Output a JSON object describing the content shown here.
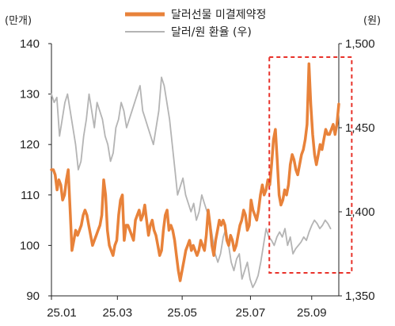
{
  "chart_data": {
    "type": "line",
    "left_unit": "(만개)",
    "right_unit": "(원)",
    "y_left": {
      "min": 90,
      "max": 140,
      "ticks": [
        90,
        100,
        110,
        120,
        130,
        140
      ]
    },
    "y_right": {
      "min": 1350,
      "max": 1500,
      "tick_labels": [
        "1,350",
        "1,400",
        "1,450",
        "1,500"
      ],
      "tick_values": [
        1350,
        1400,
        1450,
        1500
      ]
    },
    "x_labels": [
      "25.01",
      "25.03",
      "25.05",
      "25.07",
      "25.09"
    ],
    "highlight_box": {
      "x_from": 185,
      "x_to": 255,
      "style": "red dashed"
    },
    "series": [
      {
        "name": "달러선물 미결제약정",
        "axis": "left",
        "color": "#E8823A",
        "values": [
          115,
          115,
          114,
          111,
          113,
          112,
          109,
          110,
          113,
          115,
          107,
          99,
          101,
          103,
          102,
          103,
          104,
          106,
          107,
          106,
          104,
          102,
          100,
          101,
          102,
          103,
          104,
          106,
          113,
          110,
          103,
          100,
          99,
          98,
          100,
          101,
          106,
          109,
          110,
          101,
          104,
          104,
          103,
          102,
          101,
          105,
          106,
          107,
          105,
          106,
          108,
          105,
          102,
          104,
          105,
          103,
          102,
          100,
          98,
          99,
          103,
          106,
          107,
          103,
          104,
          103,
          101,
          98,
          95,
          93,
          95,
          97,
          99,
          100,
          101,
          99,
          100,
          99,
          98,
          99,
          101,
          100,
          99,
          102,
          107,
          104,
          100,
          98,
          101,
          103,
          105,
          104,
          105,
          104,
          101,
          100,
          102,
          101,
          99,
          100,
          102,
          104,
          105,
          107,
          106,
          103,
          104,
          109,
          107,
          106,
          105,
          107,
          110,
          112,
          110,
          111,
          113,
          112,
          116,
          121,
          123,
          117,
          110,
          108,
          109,
          111,
          110,
          112,
          116,
          118,
          117,
          115,
          114,
          116,
          118,
          119,
          121,
          124,
          136,
          128,
          122,
          118,
          116,
          118,
          120,
          119,
          121,
          123,
          122,
          122,
          123,
          124,
          122,
          124,
          128
        ],
        "x_start": 0,
        "x_end": 244
      },
      {
        "name": "달러/원 환율 (우)",
        "axis": "right",
        "color": "#B4B4B4",
        "values": [
          1470,
          1465,
          1468,
          1445,
          1455,
          1465,
          1470,
          1460,
          1450,
          1440,
          1425,
          1430,
          1445,
          1455,
          1470,
          1460,
          1450,
          1465,
          1460,
          1455,
          1445,
          1440,
          1430,
          1435,
          1450,
          1455,
          1465,
          1460,
          1450,
          1455,
          1460,
          1465,
          1470,
          1475,
          1460,
          1455,
          1450,
          1445,
          1440,
          1450,
          1460,
          1480,
          1475,
          1465,
          1455,
          1440,
          1425,
          1410,
          1415,
          1420,
          1410,
          1405,
          1400,
          1405,
          1395,
          1400,
          1410,
          1405,
          1400,
          1395,
          1385,
          1375,
          1370,
          1375,
          1385,
          1390,
          1380,
          1370,
          1365,
          1372,
          1375,
          1360,
          1365,
          1370,
          1360,
          1355,
          1358,
          1362,
          1370,
          1380,
          1390,
          1385,
          1383,
          1380,
          1385,
          1388,
          1385,
          1390,
          1380,
          1385,
          1375,
          1378,
          1380,
          1382,
          1385,
          1383,
          1388,
          1392,
          1395,
          1393,
          1390,
          1392,
          1395,
          1393,
          1390
        ],
        "x_start": 0,
        "x_end": 237
      }
    ],
    "x_domain": [
      0,
      244
    ],
    "x_label_positions": [
      0,
      56,
      111,
      169,
      221
    ]
  }
}
